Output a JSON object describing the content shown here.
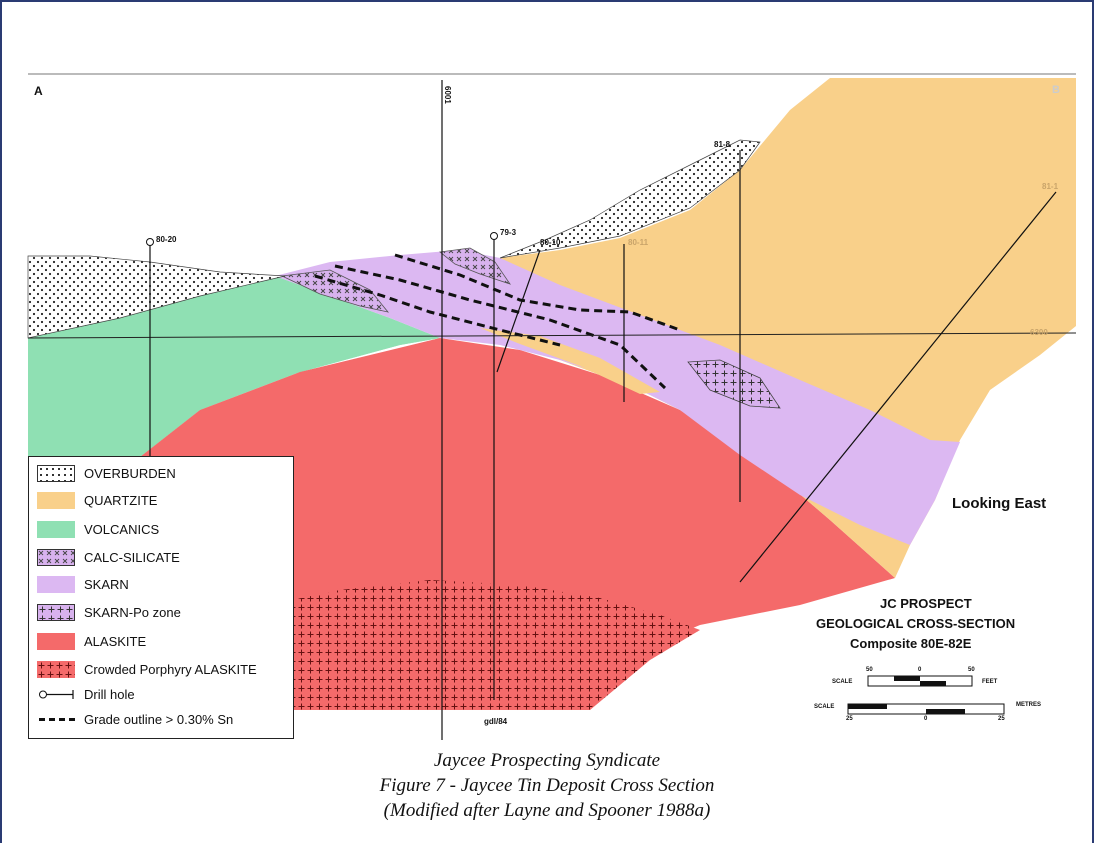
{
  "figure": {
    "corner_a": "A",
    "corner_b": "B",
    "looking": "Looking East",
    "bottom_label": "gdl/84",
    "depth_label": "6300"
  },
  "drill_holes": {
    "h1": "80-20",
    "h2": "6001",
    "h3": "79-3",
    "h4": "80-10",
    "h5": "80-11",
    "h6": "81-8",
    "h7": "81-1"
  },
  "title_block": {
    "line1": "JC PROSPECT",
    "line2": "GEOLOGICAL CROSS-SECTION",
    "line3": "Composite  80E-82E"
  },
  "scales": {
    "feet": {
      "label": "SCALE",
      "left": "50",
      "mid": "0",
      "right": "50",
      "unit": "FEET"
    },
    "metres": {
      "label": "SCALE",
      "left": "25",
      "mid": "0",
      "right": "25",
      "unit": "METRES"
    }
  },
  "legend": [
    {
      "label": "OVERBURDEN",
      "pattern": "dots",
      "color": "#ffffff"
    },
    {
      "label": "QUARTZITE",
      "pattern": "solid",
      "color": "#f9d08a"
    },
    {
      "label": "VOLCANICS",
      "pattern": "solid",
      "color": "#8fe0b3"
    },
    {
      "label": "CALC-SILICATE",
      "pattern": "cross",
      "color": "#d8b2ee"
    },
    {
      "label": "SKARN",
      "pattern": "solid",
      "color": "#dcb8f2"
    },
    {
      "label": "SKARN-Po zone",
      "pattern": "plus",
      "color": "#d8b2ee"
    },
    {
      "label": "ALASKITE",
      "pattern": "solid",
      "color": "#f46a6a"
    },
    {
      "label": "Crowded Porphyry ALASKITE",
      "pattern": "plusred",
      "color": "#f46a6a"
    },
    {
      "label": "Drill hole",
      "pattern": "drill",
      "color": "#000000"
    },
    {
      "label": "Grade outline > 0.30% Sn",
      "pattern": "dash",
      "color": "#000000"
    }
  ],
  "caption": {
    "line1": "Jaycee Prospecting Syndicate",
    "line2": "Figure 7 - Jaycee Tin Deposit Cross Section",
    "line3": "(Modified after Layne and Spooner 1988a)"
  }
}
